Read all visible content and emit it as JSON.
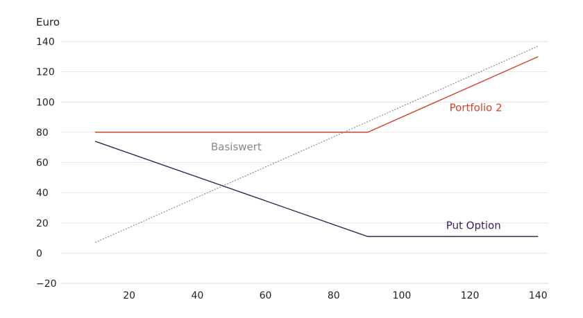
{
  "chart_data": {
    "type": "line",
    "ylabel": "Euro",
    "xlabel": "",
    "title": "",
    "xlim": [
      0,
      143
    ],
    "ylim": [
      -20,
      140
    ],
    "xticks": [
      20,
      40,
      60,
      80,
      100,
      120,
      140
    ],
    "yticks": [
      -20,
      0,
      20,
      40,
      60,
      80,
      100,
      120,
      140
    ],
    "grid": "horizontal",
    "series": [
      {
        "name": "Basiswert",
        "style": "dotted",
        "color": "#888888",
        "label_at": [
          44,
          68
        ],
        "x": [
          10,
          140
        ],
        "y": [
          7,
          137
        ]
      },
      {
        "name": "Portfolio 2",
        "style": "solid",
        "color": "#d0442a",
        "label_at": [
          114,
          94
        ],
        "x": [
          10,
          90,
          140
        ],
        "y": [
          80,
          80,
          130
        ]
      },
      {
        "name": "Put Option",
        "style": "solid",
        "color": "#3b1f57",
        "label_at": [
          113,
          16
        ],
        "x": [
          10,
          90,
          140
        ],
        "y": [
          74,
          11,
          11
        ]
      }
    ]
  }
}
